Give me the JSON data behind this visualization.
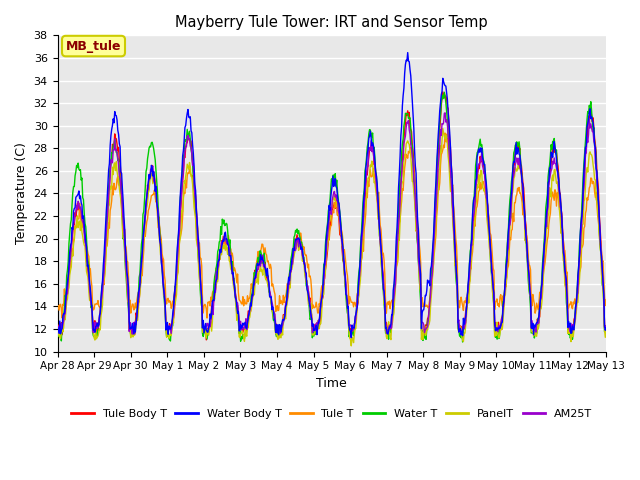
{
  "title": "Mayberry Tule Tower: IRT and Sensor Temp",
  "xlabel": "Time",
  "ylabel": "Temperature (C)",
  "ylim": [
    10,
    38
  ],
  "yticks": [
    10,
    12,
    14,
    16,
    18,
    20,
    22,
    24,
    26,
    28,
    30,
    32,
    34,
    36,
    38
  ],
  "annotation_text": "MB_tule",
  "annotation_color": "#8B0000",
  "annotation_bg": "#FFFF99",
  "annotation_border": "#CCCC00",
  "series_colors": {
    "Tule Body T": "#FF0000",
    "Water Body T": "#0000FF",
    "Tule T": "#FF8C00",
    "Water T": "#00CC00",
    "PanelT": "#CCCC00",
    "AM25T": "#9900CC"
  },
  "xtick_labels": [
    "Apr 28",
    "Apr 29",
    "Apr 30",
    "May 1",
    "May 2",
    "May 3",
    "May 4",
    "May 5",
    "May 6",
    "May 7",
    "May 8",
    "May 9",
    "May 10",
    "May 11",
    "May 12",
    "May 13"
  ],
  "n_points": 720,
  "days": 15,
  "background_color": "#E8E8E8",
  "figsize": [
    6.4,
    4.8
  ],
  "dpi": 100
}
